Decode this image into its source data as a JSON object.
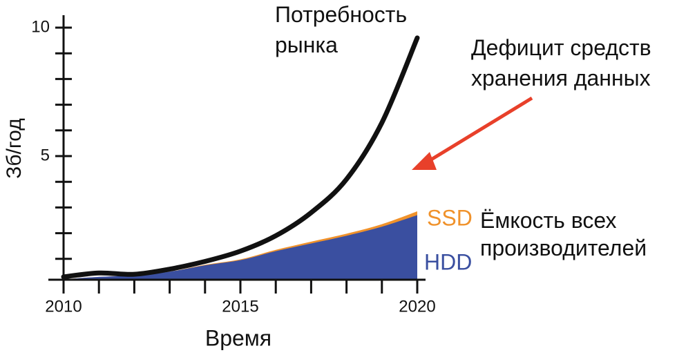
{
  "chart_data": {
    "type": "area",
    "x": [
      2010,
      2011,
      2012,
      2013,
      2014,
      2015,
      2016,
      2017,
      2018,
      2019,
      2020
    ],
    "demand": {
      "label": "Потребность рынка",
      "color": "#111111",
      "values": [
        0.3,
        0.45,
        0.4,
        0.6,
        0.9,
        1.3,
        1.9,
        2.8,
        4.1,
        6.3,
        9.6
      ]
    },
    "series": [
      {
        "name": "HDD",
        "color": "#3a4fa0",
        "values": [
          0.2,
          0.3,
          0.35,
          0.5,
          0.75,
          0.95,
          1.3,
          1.6,
          1.9,
          2.25,
          2.7
        ]
      },
      {
        "name": "SSD",
        "color": "#f0922b",
        "values": [
          0,
          0,
          0,
          0,
          0.02,
          0.03,
          0.05,
          0.07,
          0.08,
          0.1,
          0.15
        ]
      }
    ],
    "stacked": true,
    "capacity_label": "Ёмкость всех производителей",
    "gap_label": "Дефицит средств хранения данных",
    "arrow_color": "#e8402a",
    "xlabel": "Время",
    "ylabel": "Зб/год",
    "xlim": [
      2010,
      2020
    ],
    "ylim": [
      0,
      10
    ],
    "xticks": [
      2010,
      2015,
      2020
    ],
    "yticks": [
      5,
      10
    ],
    "xminor_ticks": [
      2011,
      2012,
      2013,
      2014,
      2016,
      2017,
      2018,
      2019
    ],
    "yminor_ticks": [
      1,
      2,
      3,
      4,
      6,
      7,
      8,
      9
    ]
  }
}
